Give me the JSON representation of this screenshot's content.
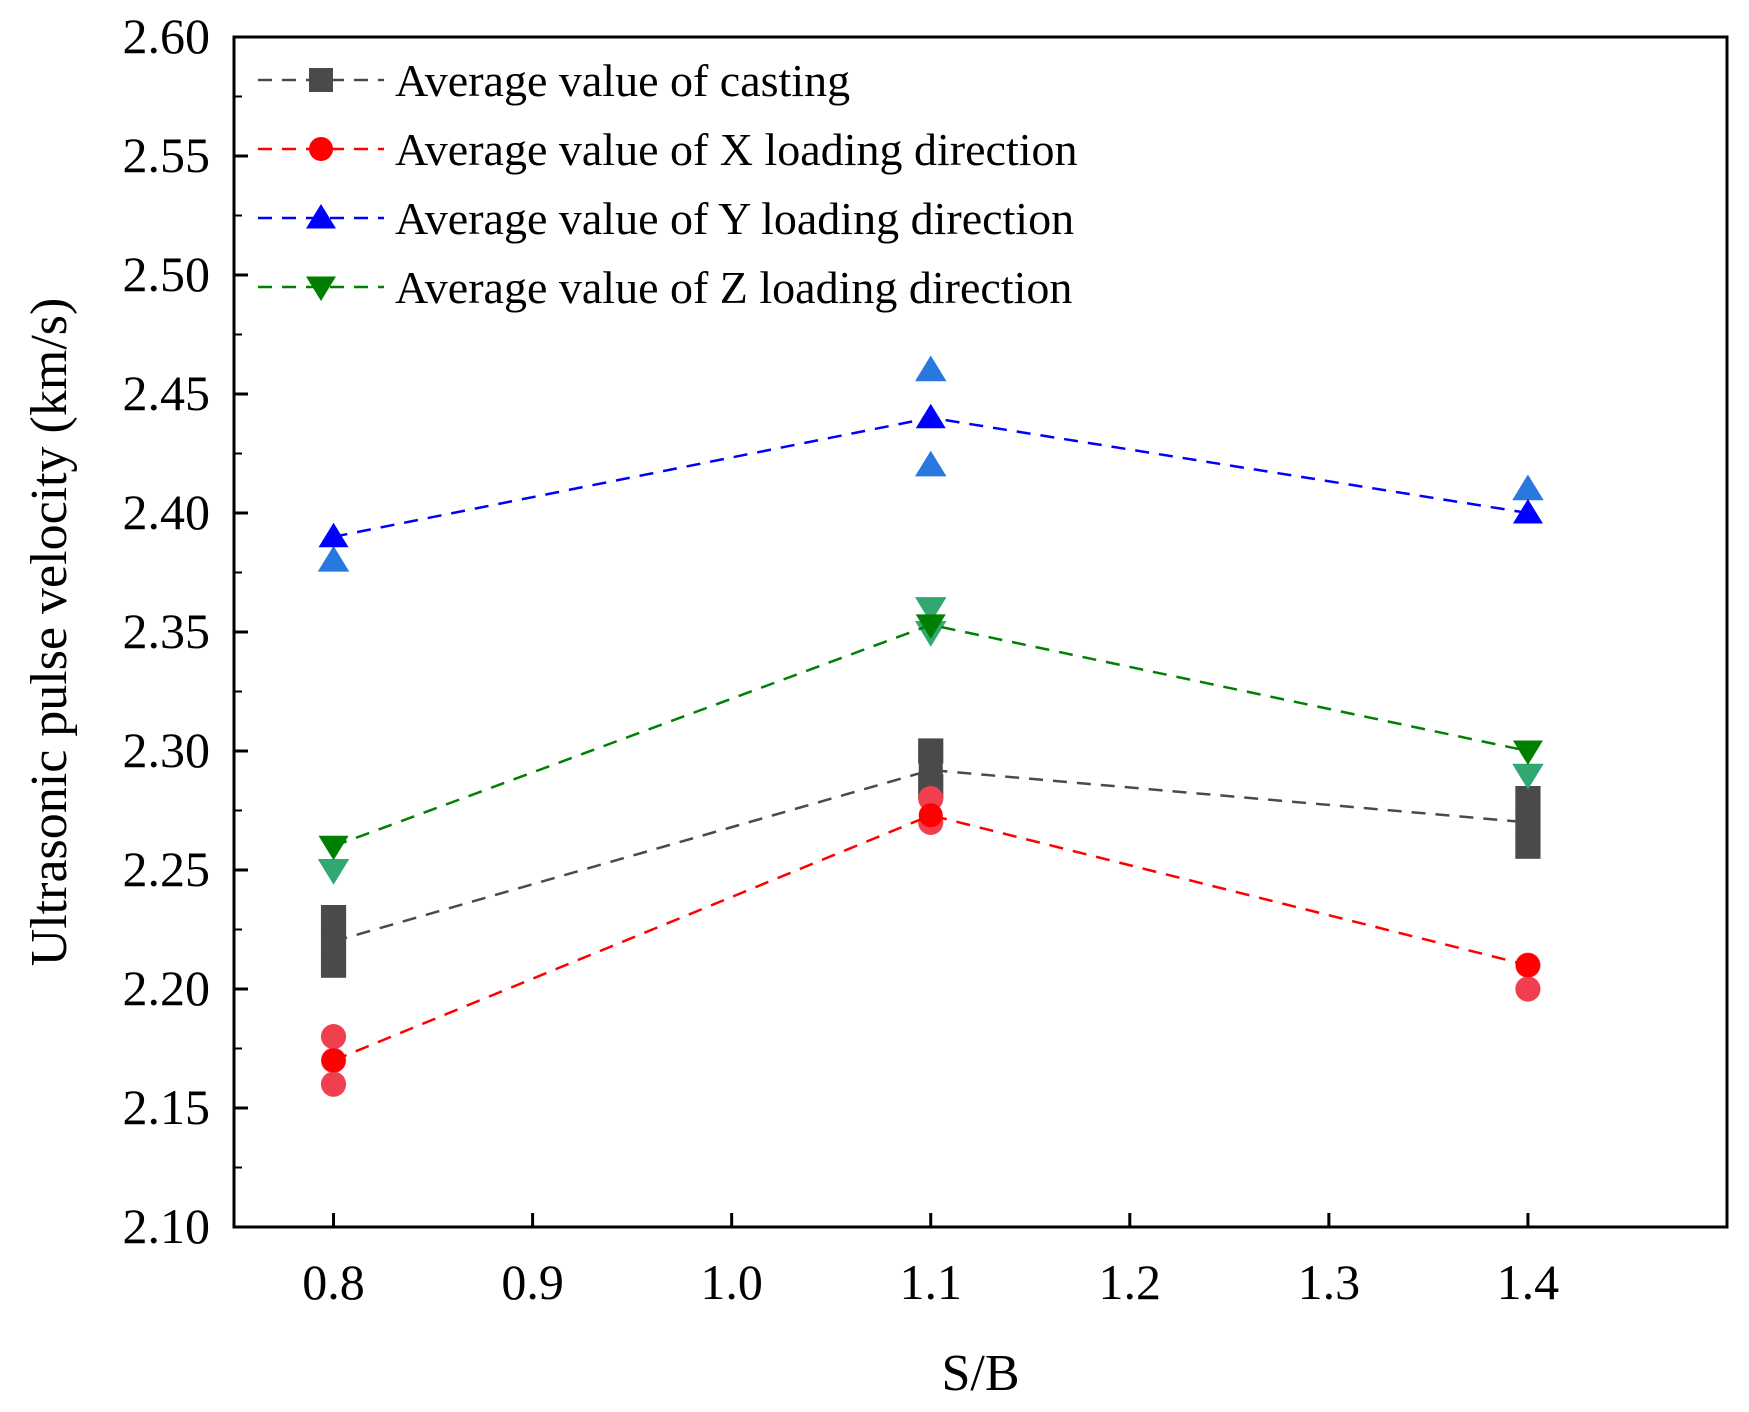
{
  "chart_data": {
    "type": "scatter",
    "xlabel": "S/B",
    "ylabel": "Ultrasonic pulse velocity (km/s)",
    "xlim": [
      0.75,
      1.5
    ],
    "ylim": [
      2.1,
      2.6
    ],
    "x_ticks": [
      0.8,
      0.9,
      1.0,
      1.1,
      1.2,
      1.3,
      1.4
    ],
    "x_tick_labels": [
      "0.8",
      "0.9",
      "1.0",
      "1.1",
      "1.2",
      "1.3",
      "1.4"
    ],
    "y_ticks": [
      2.1,
      2.15,
      2.2,
      2.25,
      2.3,
      2.35,
      2.4,
      2.45,
      2.5,
      2.55,
      2.6
    ],
    "y_tick_labels": [
      "2.10",
      "2.15",
      "2.20",
      "2.25",
      "2.30",
      "2.35",
      "2.40",
      "2.45",
      "2.50",
      "2.55",
      "2.60"
    ],
    "legend_position": "top-left",
    "series": [
      {
        "name": "Average value of casting",
        "marker": "square",
        "color": "#4a4a4a",
        "sample_color": "#4a4a4a",
        "x": [
          0.8,
          1.1,
          1.4
        ],
        "averages": [
          2.22,
          2.292,
          2.27
        ],
        "samples": [
          [
            0.8,
            2.21
          ],
          [
            0.8,
            2.22
          ],
          [
            0.8,
            2.23
          ],
          [
            1.1,
            2.285
          ],
          [
            1.1,
            2.3
          ],
          [
            1.4,
            2.26
          ],
          [
            1.4,
            2.27
          ],
          [
            1.4,
            2.28
          ]
        ]
      },
      {
        "name": "Average value of X loading direction",
        "marker": "circle",
        "color": "#ff0000",
        "sample_color": "#f04050",
        "x": [
          0.8,
          1.1,
          1.4
        ],
        "averages": [
          2.17,
          2.273,
          2.21
        ],
        "samples": [
          [
            0.8,
            2.16
          ],
          [
            0.8,
            2.17
          ],
          [
            0.8,
            2.18
          ],
          [
            1.1,
            2.27
          ],
          [
            1.1,
            2.28
          ],
          [
            1.4,
            2.2
          ],
          [
            1.4,
            2.21
          ]
        ]
      },
      {
        "name": "Average value of Y loading direction",
        "marker": "triangle-up",
        "color": "#0000ff",
        "sample_color": "#2878e0",
        "x": [
          0.8,
          1.1,
          1.4
        ],
        "averages": [
          2.39,
          2.44,
          2.4
        ],
        "samples": [
          [
            0.8,
            2.38
          ],
          [
            1.1,
            2.46
          ],
          [
            1.1,
            2.42
          ],
          [
            1.4,
            2.41
          ]
        ]
      },
      {
        "name": "Average value of Z loading direction",
        "marker": "triangle-down",
        "color": "#008000",
        "sample_color": "#30a870",
        "x": [
          0.8,
          1.1,
          1.4
        ],
        "averages": [
          2.26,
          2.353,
          2.3
        ],
        "samples": [
          [
            0.8,
            2.25
          ],
          [
            1.1,
            2.36
          ],
          [
            1.1,
            2.35
          ],
          [
            1.4,
            2.29
          ]
        ]
      }
    ]
  }
}
